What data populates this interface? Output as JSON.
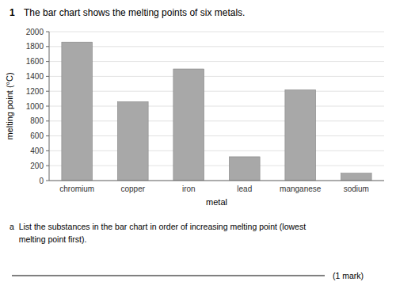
{
  "chart_data": {
    "type": "bar",
    "title": "The bar chart shows the melting points of six metals.",
    "categories": [
      "chromium",
      "copper",
      "iron",
      "lead",
      "manganese",
      "sodium"
    ],
    "values": [
      1860,
      1060,
      1500,
      320,
      1220,
      100
    ],
    "color": "#a8a8a8",
    "xlabel": "metal",
    "ylabel": "melting point (°C)",
    "ylim": [
      0,
      2000
    ],
    "yticks": [
      0,
      200,
      400,
      600,
      800,
      1000,
      1200,
      1400,
      1600,
      1800,
      2000
    ],
    "grid": true,
    "annotations": [
      "1",
      "a  List the substances in the bar chart in order of increasing melting point (lowest",
      "    melting point first).",
      "(1 mark)"
    ]
  }
}
